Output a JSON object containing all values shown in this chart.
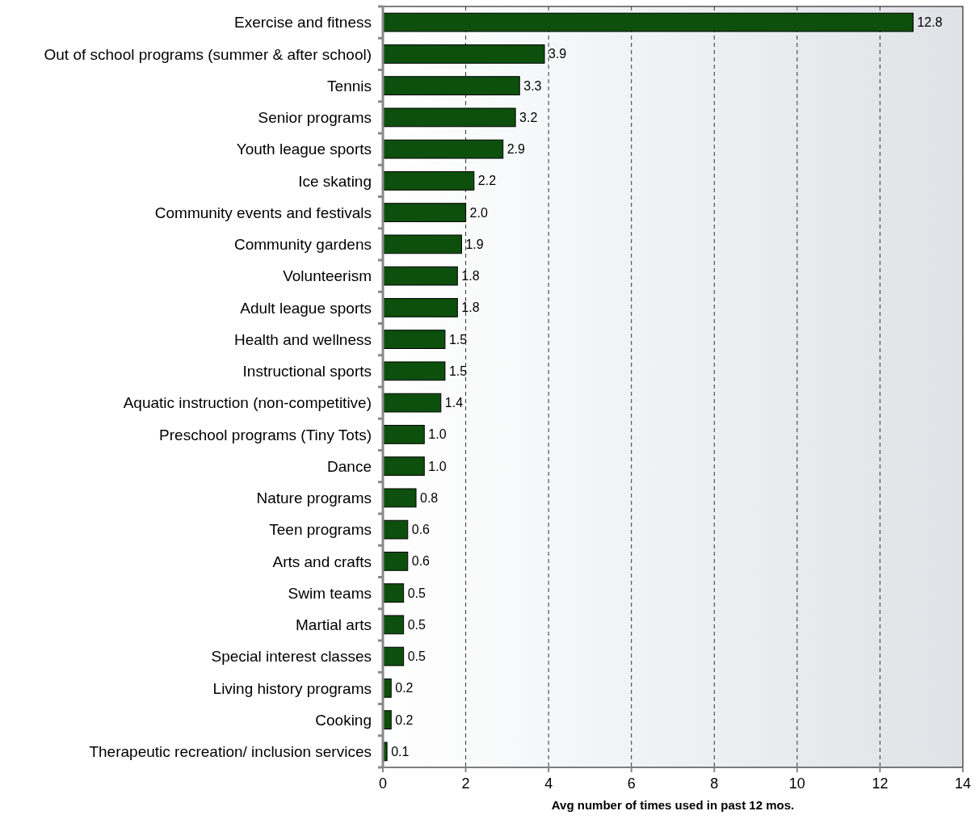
{
  "chart_data": {
    "type": "bar",
    "orientation": "horizontal",
    "xlabel": "Avg number of times used in past 12 mos.",
    "categories": [
      "Exercise and fitness",
      "Out of school programs (summer & after school)",
      "Tennis",
      "Senior programs",
      "Youth league sports",
      "Ice skating",
      "Community events and festivals",
      "Community gardens",
      "Volunteerism",
      "Adult league sports",
      "Health and wellness",
      "Instructional sports",
      "Aquatic instruction (non-competitive)",
      "Preschool programs (Tiny Tots)",
      "Dance",
      "Nature programs",
      "Teen programs",
      "Arts and crafts",
      "Swim teams",
      "Martial arts",
      "Special interest classes",
      "Living history programs",
      "Cooking",
      "Therapeutic recreation/ inclusion services"
    ],
    "values": [
      12.8,
      3.9,
      3.3,
      3.2,
      2.9,
      2.2,
      2.0,
      1.9,
      1.8,
      1.8,
      1.5,
      1.5,
      1.4,
      1.0,
      1.0,
      0.8,
      0.6,
      0.6,
      0.5,
      0.5,
      0.5,
      0.2,
      0.2,
      0.1
    ],
    "value_labels": [
      "12.8",
      "3.9",
      "3.3",
      "3.2",
      "2.9",
      "2.2",
      "2.0",
      "1.9",
      "1.8",
      "1.8",
      "1.5",
      "1.5",
      "1.4",
      "1.0",
      "1.0",
      "0.8",
      "0.6",
      "0.6",
      "0.5",
      "0.5",
      "0.5",
      "0.2",
      "0.2",
      "0.1"
    ],
    "color": "#0d4f0d",
    "xlim": [
      0,
      14
    ],
    "xticks": [
      0,
      2,
      4,
      6,
      8,
      10,
      12,
      14
    ],
    "grid": "x"
  }
}
